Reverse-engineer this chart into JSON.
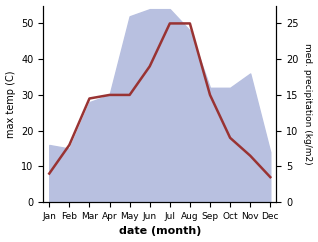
{
  "months": [
    "Jan",
    "Feb",
    "Mar",
    "Apr",
    "May",
    "Jun",
    "Jul",
    "Aug",
    "Sep",
    "Oct",
    "Nov",
    "Dec"
  ],
  "month_positions": [
    0,
    1,
    2,
    3,
    4,
    5,
    6,
    7,
    8,
    9,
    10,
    11
  ],
  "temperature": [
    8,
    16,
    29,
    30,
    30,
    38,
    50,
    50,
    30,
    18,
    13,
    7
  ],
  "precipitation": [
    8,
    7.5,
    14,
    15,
    26,
    27,
    27,
    24,
    16,
    16,
    18,
    7
  ],
  "temp_color": "#993333",
  "precip_fill_color": "#b8c0e0",
  "temp_ylim": [
    0,
    55
  ],
  "precip_ylim": [
    0,
    27.5
  ],
  "temp_yticks": [
    0,
    10,
    20,
    30,
    40,
    50
  ],
  "precip_yticks": [
    0,
    5,
    10,
    15,
    20,
    25
  ],
  "ylabel_left": "max temp (C)",
  "ylabel_right": "med. precipitation (kg/m2)",
  "xlabel": "date (month)",
  "bg_color": "#ffffff",
  "line_width": 1.8,
  "precip_scale": 2.0
}
